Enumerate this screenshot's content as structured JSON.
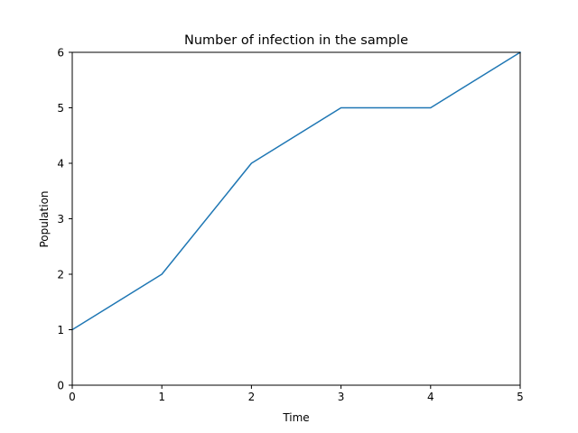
{
  "chart_data": {
    "type": "line",
    "title": "Number of infection in the sample",
    "xlabel": "Time",
    "ylabel": "Population",
    "xlim": [
      0,
      5
    ],
    "ylim": [
      0,
      6
    ],
    "x_ticks": [
      "0",
      "1",
      "2",
      "3",
      "4",
      "5"
    ],
    "y_ticks": [
      "0",
      "1",
      "2",
      "3",
      "4",
      "5",
      "6"
    ],
    "grid": false,
    "series": [
      {
        "x": [
          0,
          1,
          2,
          3,
          4,
          5
        ],
        "y": [
          1,
          2,
          4,
          5,
          5,
          6
        ],
        "color": "#1f77b4"
      }
    ]
  }
}
